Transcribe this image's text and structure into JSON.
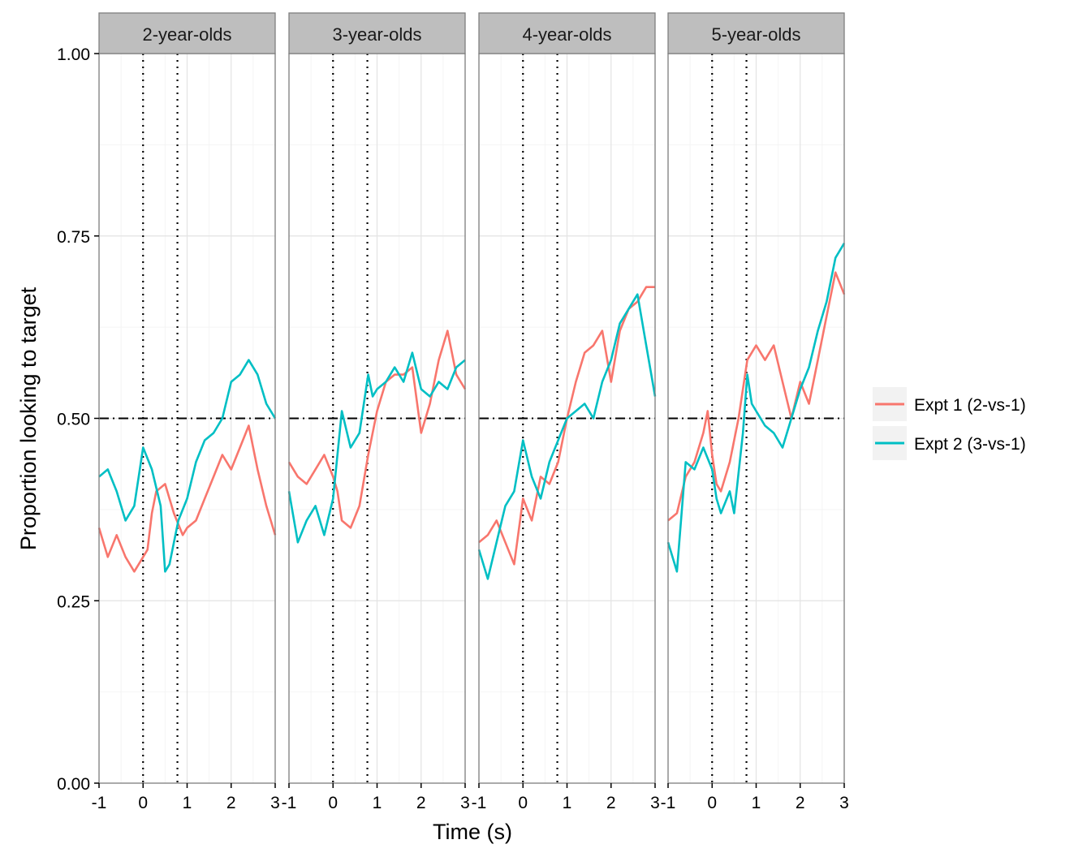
{
  "chart_data": {
    "type": "line",
    "xlabel": "Time (s)",
    "ylabel": "Proportion looking to target",
    "xlim": [
      -1,
      3
    ],
    "ylim": [
      0,
      1
    ],
    "x_ticks": [
      "-1",
      "0",
      "1",
      "2",
      "3"
    ],
    "y_ticks": [
      "0.00",
      "0.25",
      "0.50",
      "0.75",
      "1.00"
    ],
    "reference_lines": {
      "vertical_dotted": [
        0,
        0.78
      ],
      "horizontal_dotdash": 0.5
    },
    "grid": true,
    "legend_position": "right",
    "colors": {
      "expt1": "#F8766D",
      "expt2": "#00BFC4",
      "strip": "#BEBEBE"
    },
    "series_names": [
      "Expt 1 (2-vs-1)",
      "Expt 2 (3-vs-1)"
    ],
    "panels": [
      {
        "label": "2-year-olds",
        "series": [
          {
            "name": "Expt 1 (2-vs-1)",
            "x": [
              -1,
              -0.8,
              -0.6,
              -0.4,
              -0.2,
              0,
              0.1,
              0.2,
              0.3,
              0.5,
              0.7,
              0.9,
              1.0,
              1.2,
              1.4,
              1.6,
              1.8,
              2.0,
              2.2,
              2.4,
              2.6,
              2.8,
              3.0
            ],
            "y": [
              0.35,
              0.31,
              0.34,
              0.31,
              0.29,
              0.31,
              0.32,
              0.37,
              0.4,
              0.41,
              0.37,
              0.34,
              0.35,
              0.36,
              0.39,
              0.42,
              0.45,
              0.43,
              0.46,
              0.49,
              0.43,
              0.38,
              0.34
            ]
          },
          {
            "name": "Expt 2 (3-vs-1)",
            "x": [
              -1,
              -0.8,
              -0.6,
              -0.4,
              -0.2,
              0,
              0.2,
              0.4,
              0.5,
              0.6,
              0.8,
              1.0,
              1.2,
              1.4,
              1.6,
              1.8,
              2.0,
              2.2,
              2.4,
              2.6,
              2.8,
              3.0
            ],
            "y": [
              0.42,
              0.43,
              0.4,
              0.36,
              0.38,
              0.46,
              0.43,
              0.38,
              0.29,
              0.3,
              0.36,
              0.39,
              0.44,
              0.47,
              0.48,
              0.5,
              0.55,
              0.56,
              0.58,
              0.56,
              0.52,
              0.5
            ]
          }
        ]
      },
      {
        "label": "3-year-olds",
        "series": [
          {
            "name": "Expt 1 (2-vs-1)",
            "x": [
              -1,
              -0.8,
              -0.6,
              -0.4,
              -0.2,
              0,
              0.1,
              0.2,
              0.4,
              0.6,
              0.8,
              1.0,
              1.2,
              1.4,
              1.6,
              1.8,
              2.0,
              2.2,
              2.4,
              2.6,
              2.8,
              3.0
            ],
            "y": [
              0.44,
              0.42,
              0.41,
              0.43,
              0.45,
              0.42,
              0.4,
              0.36,
              0.35,
              0.38,
              0.45,
              0.51,
              0.55,
              0.56,
              0.56,
              0.57,
              0.48,
              0.52,
              0.58,
              0.62,
              0.56,
              0.54
            ]
          },
          {
            "name": "Expt 2 (3-vs-1)",
            "x": [
              -1,
              -0.8,
              -0.6,
              -0.4,
              -0.2,
              0,
              0.2,
              0.4,
              0.6,
              0.8,
              0.9,
              1.0,
              1.2,
              1.4,
              1.6,
              1.8,
              2.0,
              2.2,
              2.4,
              2.6,
              2.8,
              3.0
            ],
            "y": [
              0.4,
              0.33,
              0.36,
              0.38,
              0.34,
              0.39,
              0.51,
              0.46,
              0.48,
              0.56,
              0.53,
              0.54,
              0.55,
              0.57,
              0.55,
              0.59,
              0.54,
              0.53,
              0.55,
              0.54,
              0.57,
              0.58
            ]
          }
        ]
      },
      {
        "label": "4-year-olds",
        "series": [
          {
            "name": "Expt 1 (2-vs-1)",
            "x": [
              -1,
              -0.8,
              -0.6,
              -0.4,
              -0.2,
              0,
              0.2,
              0.4,
              0.6,
              0.8,
              1.0,
              1.2,
              1.4,
              1.6,
              1.8,
              2.0,
              2.2,
              2.4,
              2.6,
              2.8,
              3.0
            ],
            "y": [
              0.33,
              0.34,
              0.36,
              0.33,
              0.3,
              0.39,
              0.36,
              0.42,
              0.41,
              0.44,
              0.5,
              0.55,
              0.59,
              0.6,
              0.62,
              0.55,
              0.62,
              0.65,
              0.66,
              0.68,
              0.68
            ]
          },
          {
            "name": "Expt 2 (3-vs-1)",
            "x": [
              -1,
              -0.8,
              -0.6,
              -0.4,
              -0.2,
              0,
              0.2,
              0.4,
              0.6,
              0.8,
              1.0,
              1.2,
              1.4,
              1.6,
              1.8,
              2.0,
              2.2,
              2.4,
              2.6,
              2.8,
              3.0
            ],
            "y": [
              0.32,
              0.28,
              0.33,
              0.38,
              0.4,
              0.47,
              0.42,
              0.39,
              0.44,
              0.47,
              0.5,
              0.51,
              0.52,
              0.5,
              0.55,
              0.58,
              0.63,
              0.65,
              0.67,
              0.6,
              0.53
            ]
          }
        ]
      },
      {
        "label": "5-year-olds",
        "series": [
          {
            "name": "Expt 1 (2-vs-1)",
            "x": [
              -1,
              -0.8,
              -0.6,
              -0.4,
              -0.2,
              -0.1,
              0,
              0.1,
              0.2,
              0.4,
              0.6,
              0.8,
              1.0,
              1.2,
              1.4,
              1.6,
              1.8,
              2.0,
              2.2,
              2.4,
              2.6,
              2.8,
              3.0
            ],
            "y": [
              0.36,
              0.37,
              0.42,
              0.44,
              0.48,
              0.51,
              0.45,
              0.41,
              0.4,
              0.44,
              0.5,
              0.58,
              0.6,
              0.58,
              0.6,
              0.55,
              0.5,
              0.55,
              0.52,
              0.58,
              0.64,
              0.7,
              0.67
            ]
          },
          {
            "name": "Expt 2 (3-vs-1)",
            "x": [
              -1,
              -0.8,
              -0.6,
              -0.4,
              -0.2,
              0,
              0.1,
              0.2,
              0.4,
              0.5,
              0.7,
              0.8,
              0.9,
              1.0,
              1.2,
              1.4,
              1.6,
              1.8,
              2.0,
              2.2,
              2.4,
              2.6,
              2.8,
              3.0
            ],
            "y": [
              0.33,
              0.29,
              0.44,
              0.43,
              0.46,
              0.43,
              0.39,
              0.37,
              0.4,
              0.37,
              0.48,
              0.56,
              0.52,
              0.51,
              0.49,
              0.48,
              0.46,
              0.5,
              0.54,
              0.57,
              0.62,
              0.66,
              0.72,
              0.74
            ]
          }
        ]
      }
    ]
  }
}
